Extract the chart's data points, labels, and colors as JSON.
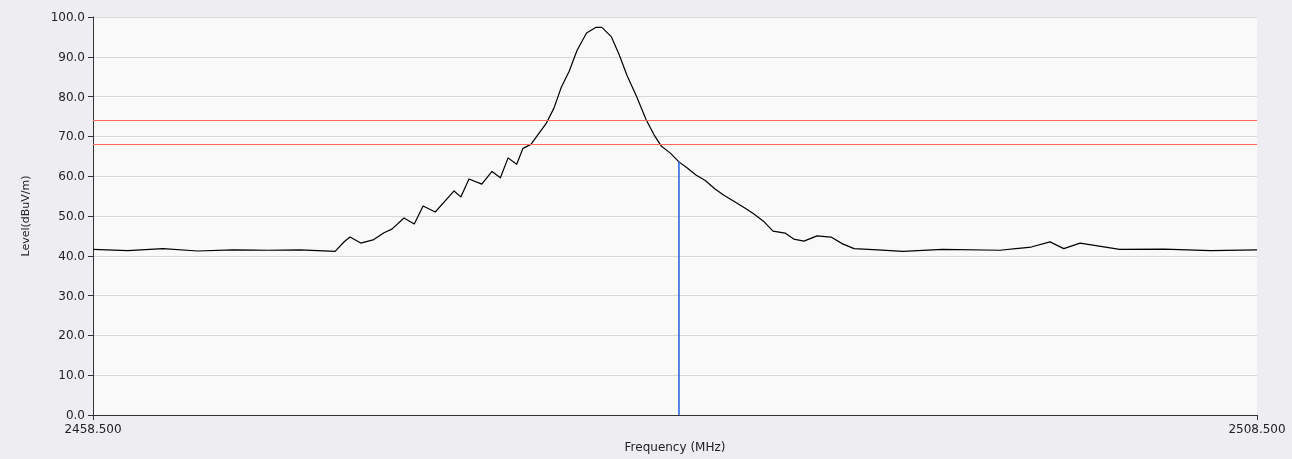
{
  "chart_data": {
    "type": "line",
    "xlabel": "Frequency (MHz)",
    "ylabel": "Level(dBuV/m)",
    "xlim": [
      2458.5,
      2508.5
    ],
    "xticks": [
      {
        "value": 2458.5,
        "label": "2458.500"
      },
      {
        "value": 2508.5,
        "label": "2508.500"
      }
    ],
    "ylim": [
      0,
      100
    ],
    "yticks": [
      {
        "value": 0,
        "label": "0.0"
      },
      {
        "value": 10,
        "label": "10.0"
      },
      {
        "value": 20,
        "label": "20.0"
      },
      {
        "value": 30,
        "label": "30.0"
      },
      {
        "value": 40,
        "label": "40.0"
      },
      {
        "value": 50,
        "label": "50.0"
      },
      {
        "value": 60,
        "label": "60.0"
      },
      {
        "value": 70,
        "label": "70.0"
      },
      {
        "value": 80,
        "label": "80.0"
      },
      {
        "value": 90,
        "label": "90.0"
      },
      {
        "value": 100,
        "label": "100.0"
      }
    ],
    "grid": "y",
    "marker": "none",
    "line_style": "solid",
    "series": [
      {
        "color": "#000000",
        "x": [
          2458.5,
          2460.0,
          2461.5,
          2463.0,
          2464.5,
          2466.0,
          2467.39,
          2468.9,
          2469.3,
          2469.54,
          2470.0,
          2470.53,
          2471.0,
          2471.34,
          2471.86,
          2472.3,
          2472.68,
          2473.2,
          2474.01,
          2474.3,
          2474.65,
          2475.2,
          2475.64,
          2476.0,
          2476.33,
          2476.7,
          2476.97,
          2477.31,
          2477.96,
          2478.3,
          2478.62,
          2478.95,
          2479.29,
          2479.7,
          2480.11,
          2480.36,
          2480.77,
          2481.09,
          2481.44,
          2481.85,
          2482.26,
          2482.6,
          2482.92,
          2483.3,
          2483.67,
          2484.0,
          2484.4,
          2484.8,
          2485.22,
          2485.6,
          2486.08,
          2486.5,
          2486.89,
          2487.3,
          2487.71,
          2488.23,
          2488.6,
          2489.04,
          2489.6,
          2490.2,
          2490.7,
          2491.19,
          2492.2,
          2493.29,
          2495.0,
          2497.46,
          2498.8,
          2499.61,
          2500.2,
          2500.9,
          2502.6,
          2504.5,
          2506.5,
          2508.5
        ],
        "values": [
          41.6,
          41.3,
          41.8,
          41.2,
          41.5,
          41.4,
          41.5,
          41.1,
          43.6,
          44.7,
          43.2,
          44.0,
          45.8,
          46.7,
          49.5,
          48.0,
          52.5,
          51.0,
          56.3,
          54.8,
          59.3,
          58.0,
          61.2,
          59.6,
          64.6,
          63.0,
          67.0,
          68.0,
          73.2,
          77.1,
          82.4,
          86.3,
          91.6,
          96.0,
          97.4,
          97.4,
          95.0,
          90.7,
          85.3,
          80.0,
          74.2,
          70.4,
          67.5,
          65.8,
          63.6,
          62.2,
          60.3,
          58.9,
          56.8,
          55.2,
          53.5,
          52.0,
          50.5,
          48.7,
          46.2,
          45.7,
          44.2,
          43.7,
          45.0,
          44.7,
          43.0,
          41.8,
          41.5,
          41.1,
          41.6,
          41.4,
          42.2,
          43.5,
          41.8,
          43.2,
          41.6,
          41.7,
          41.3,
          41.5
        ]
      },
      {
        "color": "#1f5fe0",
        "x": [
          2483.67,
          2483.67
        ],
        "values": [
          0,
          63.6
        ]
      }
    ],
    "ref_lines": [
      {
        "axis": "y",
        "value": 74,
        "color": "#ff6a5a"
      },
      {
        "axis": "y",
        "value": 68,
        "color": "#ff6a5a"
      }
    ]
  }
}
